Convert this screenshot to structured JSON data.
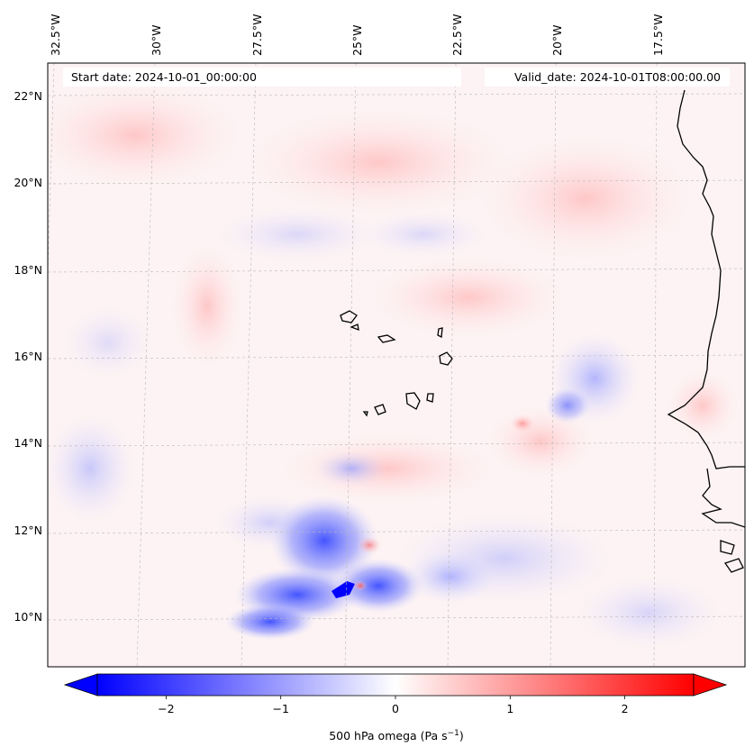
{
  "map": {
    "start_date": "Start date: 2024-10-01_00:00:00",
    "valid_date": "Valid_date: 2024-10-01T08:00:00.00",
    "lon_labels": [
      "32.5°W",
      "30°W",
      "27.5°W",
      "25°W",
      "22.5°W",
      "20°W",
      "17.5°W"
    ],
    "lat_labels": [
      "22°N",
      "20°N",
      "18°N",
      "16°N",
      "14°N",
      "12°N",
      "10°N"
    ],
    "gridlines": true,
    "coastline_color": "#000000"
  },
  "colorbar": {
    "label": "500 hPa omega (Pa s",
    "label_sup": "−1",
    "label_tail": ")",
    "ticks": [
      "−2",
      "−1",
      "0",
      "1",
      "2"
    ],
    "tick_values": [
      -2,
      -1,
      0,
      1,
      2
    ],
    "range": [
      -2.6,
      2.6
    ],
    "colors": {
      "min": "#0000ff",
      "mid": "#ffffff",
      "max": "#ff0000"
    },
    "extend": "both"
  }
}
